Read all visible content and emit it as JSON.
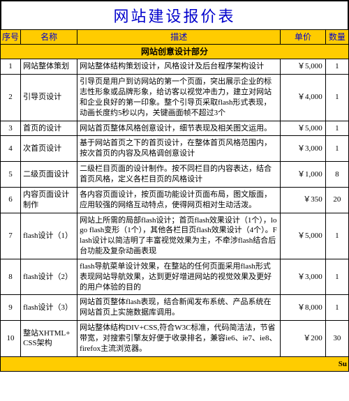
{
  "title": "网站建设报价表",
  "columns": {
    "seq": "序号",
    "name": "名称",
    "desc": "描述",
    "price": "单价",
    "qty": "数量"
  },
  "section_label": "网站创意设计部分",
  "footer_text": "Su",
  "rows": [
    {
      "seq": "1",
      "name": "网站整体策划",
      "desc": "网站整体结构策划设计，风格设计及后台程序架构设计",
      "price": "￥5,000",
      "qty": "1"
    },
    {
      "seq": "2",
      "name": "引导页设计",
      "desc": "引导页是用户到访网站的第一个页面，突出展示企业的标志性形象或品牌形象，给访客以视觉冲击力，建立对网站和企业良好的第一印象。整个引导页采取flash形式表现，动画长度约5秒以内，关键画面帧不超过3个",
      "price": "￥4,000",
      "qty": "1"
    },
    {
      "seq": "3",
      "name": "首页的设计",
      "desc": "网站首页整体风格创意设计，细节表现及相关图文运用。",
      "price": "￥5,000",
      "qty": "1"
    },
    {
      "seq": "4",
      "name": "次首页设计",
      "desc": "基于网站首页之下的首页设计，在整体首页风格范围内，按次首页的内容及风格调创意设计",
      "price": "￥3,000",
      "qty": "1"
    },
    {
      "seq": "5",
      "name": "二级页面设计",
      "desc": "二级栏目页面的设计制作。按不同栏目的内容表达，结合首页风格，定义各栏目页的风格设计",
      "price": "￥1,000",
      "qty": "8"
    },
    {
      "seq": "6",
      "name": "内容页面设计制作",
      "desc": "各内容页面设计，按页面功能设计页面布局，图文版面，应用较强的网络互动特点，使得网页相对生动活泼。",
      "price": "￥350",
      "qty": "20"
    },
    {
      "seq": "7",
      "name": "flash设计（1）",
      "desc": "网站上所需的局部flash设计；首页flash效果设计（1个），logo flash变形（1个），其他各栏目页flash效果设计（4个）。Flash设计以简洁明了丰富视觉效果为主，不牵涉flash结合后台功能及复杂动画表现",
      "price": "￥5,000",
      "qty": "1"
    },
    {
      "seq": "8",
      "name": "flash设计（2）",
      "desc": "flash导航菜单设计效果，在整站的任何页面采用flash形式表现网站导航效果，达到更好增进网站的视觉效果及更好的用户体验的目的",
      "price": "￥3,000",
      "qty": "1"
    },
    {
      "seq": "9",
      "name": "flash设计（3）",
      "desc": "网站首页整体flash表现，结合新闻发布系统、产品系统在网站首页上实施数据库调用。",
      "price": "￥8,000",
      "qty": "1"
    },
    {
      "seq": "10",
      "name": "整站XHTML+CSS架构",
      "desc": "网站整体结构DIV+CSS,符合W3C标准，代码简洁法，节省带宽，对搜索引擎友好便于收录排名，兼容ie6、ie7、ie8、firefox主流浏览器。",
      "price": "￥200",
      "qty": "30"
    }
  ]
}
